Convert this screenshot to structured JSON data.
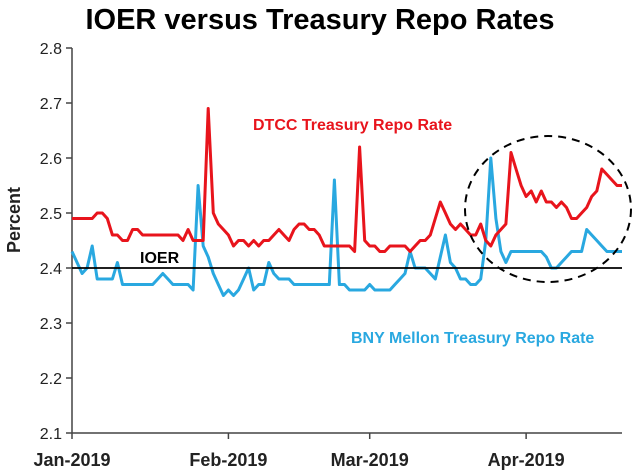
{
  "chart_data": {
    "type": "line",
    "title": "IOER versus Treasury Repo Rates",
    "ylabel": "Percent",
    "xlabel": "",
    "ylim": [
      2.1,
      2.8
    ],
    "yticks": [
      "2.1",
      "2.2",
      "2.3",
      "2.4",
      "2.5",
      "2.6",
      "2.7",
      "2.8"
    ],
    "xticks": [
      {
        "label": "Jan-2019",
        "x": 1
      },
      {
        "label": "Feb-2019",
        "x": 32
      },
      {
        "label": "Mar-2019",
        "x": 60
      },
      {
        "label": "Apr-2019",
        "x": 91
      }
    ],
    "xlim": [
      1,
      110
    ],
    "grid": false,
    "series": [
      {
        "name": "DTCC Treasury Repo Rate",
        "color": "#e8141c",
        "x": [
          1,
          3,
          4,
          5,
          6,
          7,
          8,
          9,
          10,
          11,
          12,
          13,
          14,
          15,
          16,
          17,
          18,
          19,
          20,
          21,
          22,
          23,
          24,
          25,
          26,
          27,
          28,
          29,
          30,
          31,
          32,
          33,
          34,
          35,
          36,
          37,
          38,
          39,
          40,
          41,
          42,
          43,
          44,
          45,
          46,
          47,
          48,
          49,
          50,
          51,
          52,
          53,
          54,
          55,
          56,
          57,
          58,
          59,
          60,
          61,
          62,
          63,
          64,
          65,
          66,
          67,
          68,
          69,
          70,
          71,
          72,
          73,
          74,
          75,
          76,
          77,
          78,
          79,
          80,
          81,
          82,
          83,
          84,
          85,
          86,
          87,
          88,
          89,
          90,
          91,
          92,
          93,
          94,
          95,
          96,
          97,
          98,
          99,
          100,
          101,
          102,
          103,
          104,
          105,
          106,
          107,
          108,
          109,
          110
        ],
        "values": [
          2.49,
          2.49,
          2.49,
          2.49,
          2.5,
          2.5,
          2.49,
          2.46,
          2.46,
          2.45,
          2.45,
          2.47,
          2.47,
          2.46,
          2.46,
          2.46,
          2.46,
          2.46,
          2.46,
          2.46,
          2.46,
          2.45,
          2.47,
          2.45,
          2.45,
          2.45,
          2.69,
          2.5,
          2.48,
          2.47,
          2.46,
          2.44,
          2.45,
          2.45,
          2.44,
          2.45,
          2.44,
          2.45,
          2.45,
          2.46,
          2.47,
          2.46,
          2.45,
          2.47,
          2.48,
          2.48,
          2.47,
          2.47,
          2.46,
          2.44,
          2.44,
          2.44,
          2.44,
          2.44,
          2.44,
          2.43,
          2.62,
          2.45,
          2.44,
          2.44,
          2.43,
          2.43,
          2.44,
          2.44,
          2.44,
          2.44,
          2.43,
          2.44,
          2.45,
          2.45,
          2.46,
          2.49,
          2.52,
          2.5,
          2.48,
          2.47,
          2.48,
          2.47,
          2.46,
          2.46,
          2.48,
          2.45,
          2.44,
          2.46,
          2.47,
          2.48,
          2.61,
          2.58,
          2.55,
          2.53,
          2.54,
          2.52,
          2.54,
          2.52,
          2.52,
          2.51,
          2.52,
          2.51,
          2.49,
          2.49,
          2.5,
          2.51,
          2.53,
          2.54,
          2.58,
          2.57,
          2.56,
          2.55,
          2.55
        ]
      },
      {
        "name": "BNY Mellon Treasury Repo Rate",
        "color": "#29a8e0",
        "x": [
          1,
          3,
          4,
          5,
          6,
          7,
          8,
          9,
          10,
          11,
          12,
          13,
          14,
          15,
          16,
          17,
          18,
          19,
          20,
          21,
          22,
          23,
          24,
          25,
          26,
          27,
          28,
          29,
          30,
          31,
          32,
          33,
          34,
          35,
          36,
          37,
          38,
          39,
          40,
          41,
          42,
          43,
          44,
          45,
          46,
          47,
          48,
          49,
          50,
          51,
          52,
          53,
          54,
          55,
          56,
          57,
          58,
          59,
          60,
          61,
          62,
          63,
          64,
          65,
          66,
          67,
          68,
          69,
          70,
          71,
          72,
          73,
          74,
          75,
          76,
          77,
          78,
          79,
          80,
          81,
          82,
          83,
          84,
          85,
          86,
          87,
          88,
          89,
          90,
          91,
          92,
          93,
          94,
          95,
          96,
          97,
          98,
          99,
          100,
          101,
          102,
          103,
          104,
          105,
          106,
          107,
          108,
          109,
          110
        ],
        "values": [
          2.43,
          2.39,
          2.4,
          2.44,
          2.38,
          2.38,
          2.38,
          2.38,
          2.41,
          2.37,
          2.37,
          2.37,
          2.37,
          2.37,
          2.37,
          2.37,
          2.38,
          2.39,
          2.38,
          2.37,
          2.37,
          2.37,
          2.37,
          2.36,
          2.55,
          2.44,
          2.42,
          2.39,
          2.37,
          2.35,
          2.36,
          2.35,
          2.36,
          2.38,
          2.4,
          2.36,
          2.37,
          2.37,
          2.41,
          2.39,
          2.38,
          2.38,
          2.38,
          2.37,
          2.37,
          2.37,
          2.37,
          2.37,
          2.37,
          2.37,
          2.37,
          2.56,
          2.37,
          2.37,
          2.36,
          2.36,
          2.36,
          2.36,
          2.37,
          2.36,
          2.36,
          2.36,
          2.36,
          2.37,
          2.38,
          2.39,
          2.43,
          2.4,
          2.4,
          2.4,
          2.39,
          2.38,
          2.42,
          2.46,
          2.41,
          2.4,
          2.38,
          2.38,
          2.37,
          2.37,
          2.38,
          2.45,
          2.6,
          2.49,
          2.43,
          2.41,
          2.43,
          2.43,
          2.43,
          2.43,
          2.43,
          2.43,
          2.43,
          2.42,
          2.4,
          2.4,
          2.41,
          2.42,
          2.43,
          2.43,
          2.43,
          2.47,
          2.46,
          2.45,
          2.44,
          2.43,
          2.43,
          2.43,
          2.43
        ]
      },
      {
        "name": "IOER",
        "color": "#000000",
        "x": [
          1,
          110
        ],
        "values": [
          2.4,
          2.4
        ]
      }
    ],
    "annotations": [
      {
        "text": "DTCC Treasury Repo Rate",
        "color": "#e8141c"
      },
      {
        "text": "BNY Mellon Treasury Repo Rate",
        "color": "#29a8e0"
      },
      {
        "text": "IOER",
        "color": "#000000"
      }
    ]
  }
}
